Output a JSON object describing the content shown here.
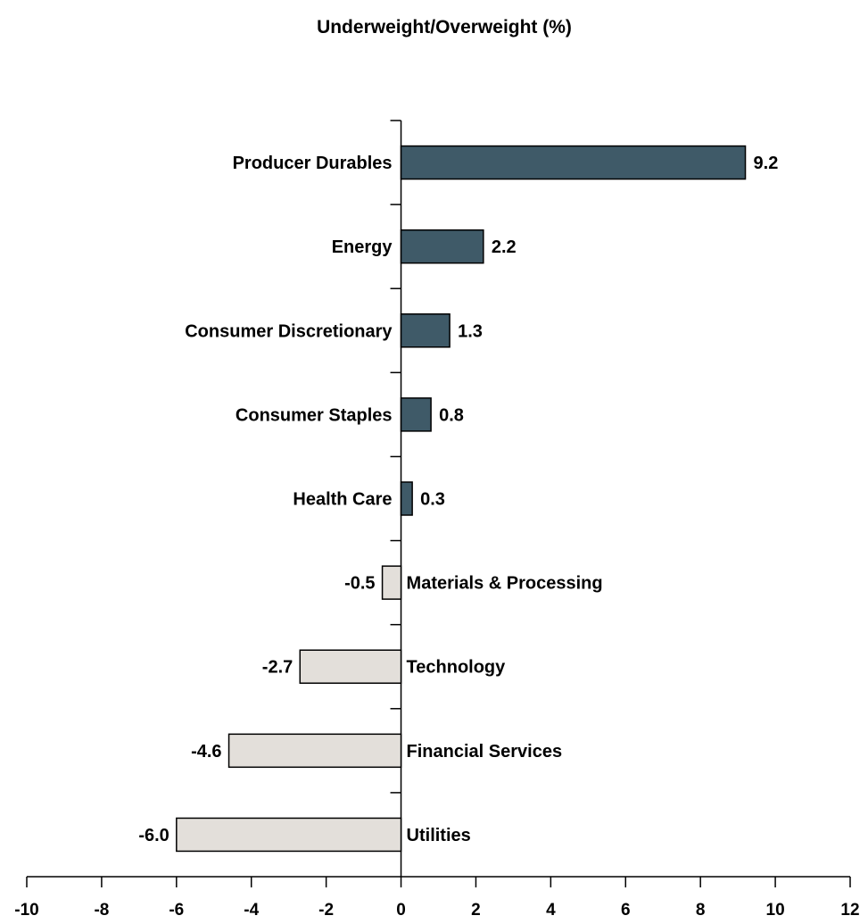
{
  "chart_data": {
    "type": "bar",
    "orientation": "horizontal",
    "title": "Underweight/Overweight (%)",
    "xlabel": "",
    "ylabel": "",
    "xlim": [
      -10,
      12
    ],
    "xticks": [
      "-10",
      "-8",
      "-6",
      "-4",
      "-2",
      "0",
      "2",
      "4",
      "6",
      "8",
      "10",
      "12"
    ],
    "categories": [
      "Producer Durables",
      "Energy",
      "Consumer Discretionary",
      "Consumer Staples",
      "Health Care",
      "Materials & Processing",
      "Technology",
      "Financial Services",
      "Utilities"
    ],
    "values": [
      9.2,
      2.2,
      1.3,
      0.8,
      0.3,
      -0.5,
      -2.7,
      -4.6,
      -6.0
    ],
    "value_labels": [
      "9.2",
      "2.2",
      "1.3",
      "0.8",
      "0.3",
      "-0.5",
      "-2.7",
      "-4.6",
      "-6.0"
    ],
    "colors": {
      "positive": "#3f5a68",
      "negative": "#e3dfda",
      "stroke": "#000000"
    },
    "grid": false,
    "legend": "none"
  }
}
